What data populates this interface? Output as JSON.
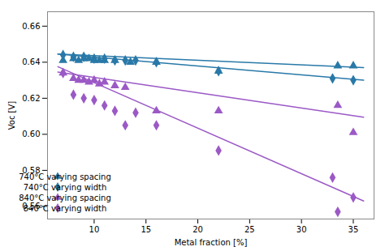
{
  "chart_data": {
    "type": "scatter",
    "xlabel": "Metal fraction [%]",
    "ylabel": "Voc [V]",
    "xlim": [
      5.5,
      37
    ],
    "ylim": [
      0.553,
      0.668
    ],
    "xticks": [
      10,
      15,
      20,
      25,
      30,
      35
    ],
    "yticks": [
      0.56,
      0.58,
      {
        "value": 0.6,
        "label": "0.60"
      },
      0.62,
      0.64,
      0.66
    ],
    "grid": false,
    "legend": "lower left",
    "series": [
      {
        "name": "740°C varying spacing",
        "type": "scatter",
        "marker": "triangle",
        "color": "#2979A8",
        "x": [
          7.0,
          8.0,
          8.5,
          9.0,
          9.5,
          10.0,
          10.5,
          11.0,
          12.0,
          13.5,
          16.0,
          22.0,
          33.5,
          35.0
        ],
        "y": [
          0.641,
          0.642,
          0.641,
          0.642,
          0.642,
          0.641,
          0.641,
          0.641,
          0.641,
          0.64,
          0.64,
          0.635,
          0.638,
          0.638
        ]
      },
      {
        "name": "740°C varying width",
        "type": "scatter",
        "marker": "diamond",
        "color": "#2979A8",
        "x": [
          7.0,
          8.0,
          9.0,
          10.0,
          11.0,
          12.0,
          13.0,
          14.0,
          16.0,
          22.0,
          33.0,
          35.0
        ],
        "y": [
          0.644,
          0.643,
          0.643,
          0.642,
          0.642,
          0.641,
          0.641,
          0.641,
          0.64,
          0.635,
          0.631,
          0.63
        ]
      },
      {
        "name": "840°C varying spacing",
        "type": "scatter",
        "marker": "triangle",
        "color": "#9B59C6",
        "x": [
          7.0,
          8.0,
          8.5,
          9.0,
          9.5,
          10.0,
          10.5,
          11.0,
          12.0,
          13.0,
          16.0,
          22.0,
          33.5,
          35.0
        ],
        "y": [
          0.634,
          0.631,
          0.63,
          0.63,
          0.629,
          0.63,
          0.628,
          0.629,
          0.627,
          0.626,
          0.613,
          0.613,
          0.616,
          0.601
        ]
      },
      {
        "name": "840°C varying width",
        "type": "scatter",
        "marker": "diamond",
        "color": "#9B59C6",
        "x": [
          7.0,
          8.0,
          9.0,
          10.0,
          11.0,
          12.0,
          13.0,
          14.0,
          16.0,
          22.0,
          33.0,
          33.5,
          35.0
        ],
        "y": [
          0.634,
          0.622,
          0.62,
          0.619,
          0.616,
          0.613,
          0.605,
          0.612,
          0.605,
          0.591,
          0.576,
          0.557,
          0.565
        ]
      },
      {
        "type": "line",
        "line_style": "solid",
        "color": "#2979A8",
        "x": [
          6.5,
          36.0
        ],
        "y": [
          0.6445,
          0.637
        ]
      },
      {
        "type": "line",
        "line_style": "solid",
        "color": "#2979A8",
        "x": [
          6.5,
          36.0
        ],
        "y": [
          0.6445,
          0.63
        ]
      },
      {
        "type": "line",
        "line_style": "solid",
        "color": "#9B59C6",
        "x": [
          6.5,
          36.0
        ],
        "y": [
          0.6345,
          0.6095
        ]
      },
      {
        "type": "line",
        "line_style": "solid",
        "color": "#9B59C6",
        "x": [
          6.5,
          36.0
        ],
        "y": [
          0.6375,
          0.563
        ]
      }
    ]
  }
}
